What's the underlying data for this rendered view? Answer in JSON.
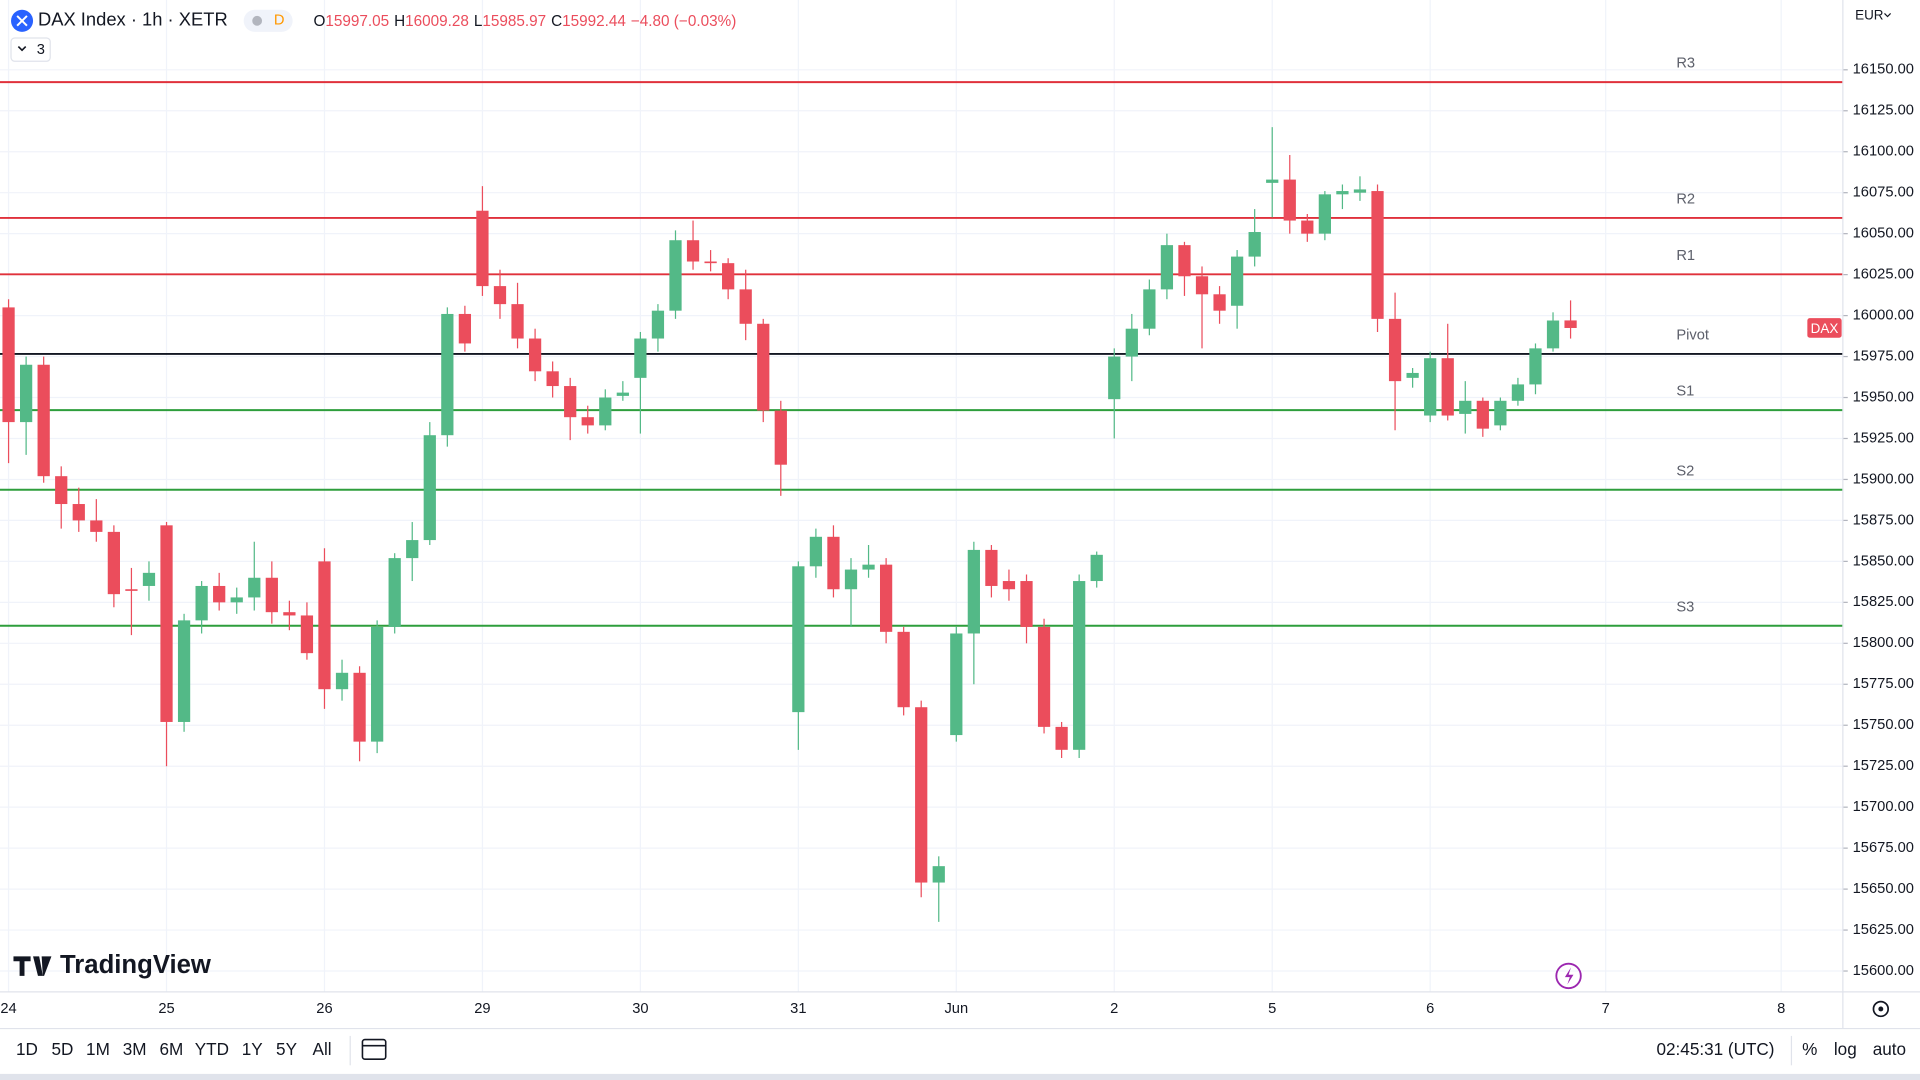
{
  "header": {
    "symbol": "DAX Index · 1h · XETR",
    "interval_badge": "D",
    "indicator_count": "3",
    "ohlc": [
      {
        "key": "O",
        "value": "15997.05"
      },
      {
        "key": "H",
        "value": "16009.28"
      },
      {
        "key": "L",
        "value": "15985.97"
      },
      {
        "key": "C",
        "value": "15992.44"
      }
    ],
    "change": "−4.80 (−0.03%)"
  },
  "currency": "EUR",
  "price_tag": "DAX",
  "logo": "TradingView",
  "toolbar": {
    "ranges": [
      "1D",
      "5D",
      "1M",
      "3M",
      "6M",
      "YTD",
      "1Y",
      "5Y",
      "All"
    ],
    "time": "02:45:31 (UTC)",
    "options": [
      "%",
      "log",
      "auto"
    ]
  },
  "chart_data": {
    "type": "candlestick",
    "up_color": "#53b987",
    "down_color": "#eb4d5c",
    "categories": [
      "24",
      null,
      null,
      null,
      null,
      null,
      null,
      null,
      null,
      "25",
      null,
      null,
      null,
      null,
      null,
      null,
      null,
      null,
      "26",
      null,
      null,
      null,
      null,
      null,
      null,
      null,
      null,
      "29",
      null,
      null,
      null,
      null,
      null,
      null,
      null,
      null,
      "30",
      null,
      null,
      null,
      null,
      null,
      null,
      null,
      null,
      "31",
      null,
      null,
      null,
      null,
      null,
      null,
      null,
      null,
      "Jun",
      null,
      null,
      null,
      null,
      null,
      null,
      null,
      null,
      "2",
      null,
      null,
      null,
      null,
      null,
      null,
      null,
      null,
      "5",
      null,
      null,
      null,
      null,
      null,
      null,
      null,
      null,
      "6",
      null,
      null,
      null,
      null,
      null,
      null,
      null,
      null,
      null,
      "7",
      null,
      null,
      null,
      null,
      null,
      null,
      null,
      null,
      null,
      "8"
    ],
    "open": [
      16005,
      15935,
      15970,
      15902,
      15885,
      15875,
      15868,
      15833,
      15835,
      15872,
      15752,
      15814,
      15835,
      15825,
      15828,
      15840,
      15819,
      15817,
      15850,
      15772,
      15782,
      15740,
      15810,
      15852,
      15863,
      15927,
      16001,
      16064,
      16018,
      16007,
      15986,
      15966,
      15957,
      15938,
      15933,
      15951,
      15962,
      15986,
      16003,
      16046,
      16033,
      16032,
      16016,
      15995,
      15942,
      15758,
      15847,
      15865,
      15833,
      15845,
      15848,
      15807,
      15761,
      15654,
      15744,
      15806,
      15857,
      15838,
      15838,
      15810,
      15749,
      15735,
      15838,
      15949,
      15975,
      15992,
      16016,
      16043,
      16024,
      16013,
      16006,
      16036,
      16081,
      16083,
      16058,
      16050,
      16074,
      16075,
      16076,
      15998,
      15962,
      15939,
      15974,
      15940,
      15948,
      15933,
      15948,
      15958,
      15980,
      15997.05,
      null,
      null,
      null,
      null,
      null,
      null,
      null,
      null,
      null,
      null,
      null,
      null
    ],
    "high": [
      16010,
      15975,
      15975,
      15908,
      15895,
      15888,
      15872,
      15846,
      15850,
      15874,
      15818,
      15838,
      15843,
      15834,
      15862,
      15850,
      15826,
      15825,
      15858,
      15790,
      15786,
      15814,
      15855,
      15874,
      15935,
      16005,
      16006,
      16079,
      16028,
      16020,
      15992,
      15972,
      15962,
      15945,
      15955,
      15960,
      15990,
      16007,
      16052,
      16058,
      16040,
      16035,
      16028,
      15998,
      15948,
      15850,
      15870,
      15872,
      15852,
      15860,
      15852,
      15810,
      15765,
      15670,
      15810,
      15862,
      15860,
      15845,
      15842,
      15815,
      15752,
      15842,
      15856,
      15980,
      16001,
      16022,
      16050,
      16045,
      16030,
      16018,
      16040,
      16065,
      16115,
      16098,
      16062,
      16076,
      16080,
      16085,
      16080,
      16014,
      15968,
      15978,
      15995,
      15960,
      15950,
      15950,
      15962,
      15983,
      16002,
      16009.28,
      null,
      null,
      null,
      null,
      null,
      null,
      null,
      null,
      null,
      null,
      null,
      null
    ],
    "low": [
      15910,
      15915,
      15898,
      15870,
      15868,
      15862,
      15822,
      15805,
      15826,
      15725,
      15746,
      15806,
      15820,
      15818,
      15820,
      15812,
      15808,
      15790,
      15760,
      15765,
      15728,
      15733,
      15806,
      15838,
      15860,
      15920,
      15978,
      16012,
      15998,
      15980,
      15960,
      15950,
      15924,
      15928,
      15930,
      15948,
      15928,
      15978,
      15998,
      16028,
      16027,
      16010,
      15985,
      15935,
      15890,
      15735,
      15840,
      15828,
      15810,
      15840,
      15800,
      15756,
      15645,
      15630,
      15740,
      15775,
      15828,
      15826,
      15800,
      15745,
      15730,
      15730,
      15834,
      15925,
      15960,
      15988,
      16010,
      16012,
      15980,
      15995,
      15992,
      16030,
      16060,
      16050,
      16045,
      16046,
      16065,
      16070,
      15990,
      15930,
      15956,
      15935,
      15936,
      15928,
      15926,
      15930,
      15945,
      15952,
      15978,
      15985.97,
      null,
      null,
      null,
      null,
      null,
      null,
      null,
      null,
      null,
      null,
      null,
      null
    ],
    "close": [
      15935,
      15970,
      15902,
      15885,
      15875,
      15868,
      15830,
      15832,
      15843,
      15752,
      15814,
      15835,
      15825,
      15828,
      15840,
      15819,
      15817,
      15794,
      15772,
      15782,
      15740,
      15810,
      15852,
      15863,
      15927,
      16001,
      15983,
      16018,
      16007,
      15986,
      15966,
      15957,
      15938,
      15933,
      15950,
      15953,
      15986,
      16003,
      16046,
      16033,
      16032,
      16016,
      15995,
      15942,
      15909,
      15847,
      15865,
      15833,
      15845,
      15848,
      15807,
      15761,
      15654,
      15664,
      15806,
      15857,
      15835,
      15833,
      15810,
      15749,
      15735,
      15838,
      15854,
      15975,
      15992,
      16016,
      16043,
      16024,
      16013,
      16003,
      16036,
      16051,
      16083,
      16058,
      16050,
      16074,
      16076,
      16077,
      15998,
      15960,
      15965,
      15974,
      15939,
      15948,
      15931,
      15948,
      15958,
      15980,
      15997,
      15992.44,
      null,
      null,
      null,
      null,
      null,
      null,
      null,
      null,
      null,
      null,
      null,
      null
    ],
    "levels": [
      {
        "name": "R3",
        "value": 16142.5,
        "color": "#e0313b"
      },
      {
        "name": "R2",
        "value": 16059.6,
        "color": "#e0313b"
      },
      {
        "name": "R1",
        "value": 16025.2,
        "color": "#e0313b"
      },
      {
        "name": "Pivot",
        "value": 15976.6,
        "color": "#131722"
      },
      {
        "name": "S1",
        "value": 15942.3,
        "color": "#2e9e3c"
      },
      {
        "name": "S2",
        "value": 15893.7,
        "color": "#2e9e3c"
      },
      {
        "name": "S3",
        "value": 15810.7,
        "color": "#2e9e3c"
      }
    ],
    "ylim": [
      15587.3,
      16192.6
    ],
    "yticks": [
      {
        "value": 15600,
        "label": "15600.00"
      },
      {
        "value": 15625,
        "label": "15625.00"
      },
      {
        "value": 15650,
        "label": "15650.00"
      },
      {
        "value": 15675,
        "label": "15675.00"
      },
      {
        "value": 15700,
        "label": "15700.00"
      },
      {
        "value": 15725,
        "label": "15725.00"
      },
      {
        "value": 15750,
        "label": "15750.00"
      },
      {
        "value": 15775,
        "label": "15775.00"
      },
      {
        "value": 15800,
        "label": "15800.00"
      },
      {
        "value": 15825,
        "label": "15825.00"
      },
      {
        "value": 15850,
        "label": "15850.00"
      },
      {
        "value": 15875,
        "label": "15875.00"
      },
      {
        "value": 15900,
        "label": "15900.00"
      },
      {
        "value": 15925,
        "label": "15925.00"
      },
      {
        "value": 15950,
        "label": "15950.00"
      },
      {
        "value": 15975,
        "label": "15975.00"
      },
      {
        "value": 16000,
        "label": "16000.00"
      },
      {
        "value": 16025,
        "label": "16025.00"
      },
      {
        "value": 16050,
        "label": "16050.00"
      },
      {
        "value": 16075,
        "label": "16075.00"
      },
      {
        "value": 16100,
        "label": "16100.00"
      },
      {
        "value": 16125,
        "label": "16125.00"
      },
      {
        "value": 16150,
        "label": "16150.00"
      }
    ],
    "grid": true
  }
}
